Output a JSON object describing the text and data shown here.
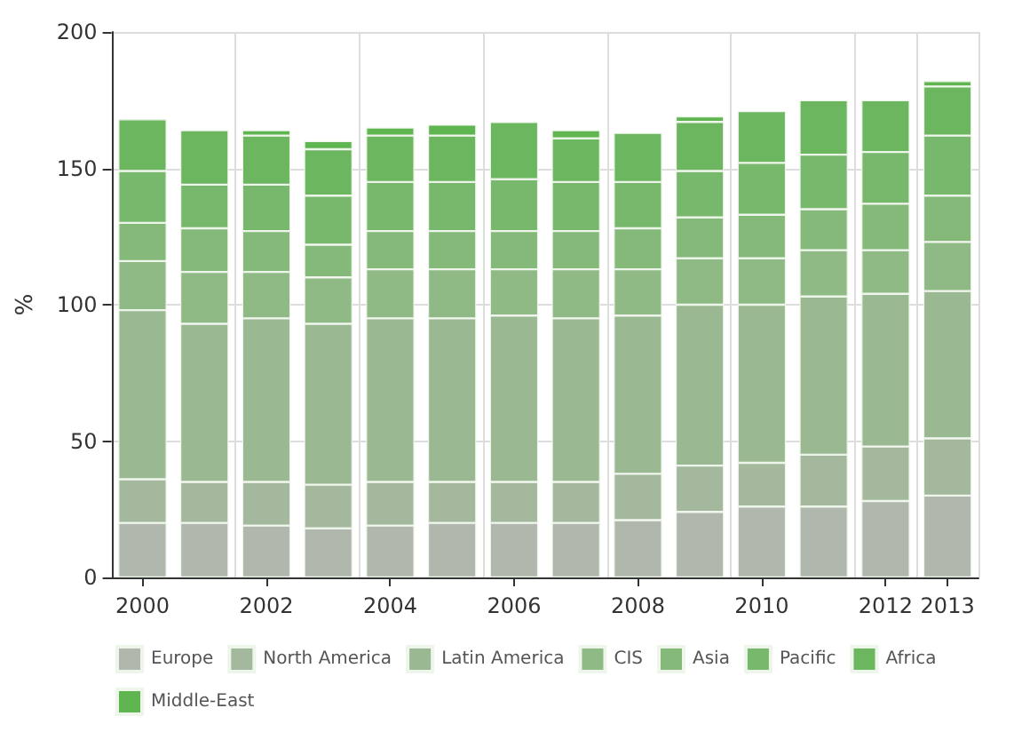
{
  "chart_data": {
    "type": "bar",
    "stacked": true,
    "ylabel": "%",
    "categories": [
      "2000",
      null,
      "2002",
      null,
      "2004",
      null,
      "2006",
      null,
      "2008",
      null,
      "2010",
      null,
      "2012",
      "2013"
    ],
    "ylim": [
      0,
      200
    ],
    "yticks": [
      0,
      50,
      100,
      150,
      200
    ],
    "grid": true,
    "legend": "bottom",
    "series": [
      {
        "name": "Europe",
        "color": "#b0b8ae",
        "values": [
          20,
          20,
          19,
          18,
          19,
          20,
          20,
          20,
          21,
          24,
          26,
          26,
          28,
          30
        ]
      },
      {
        "name": "North America",
        "color": "#a3b89c",
        "values": [
          16,
          15,
          16,
          16,
          16,
          15,
          15,
          15,
          17,
          17,
          16,
          19,
          20,
          21
        ]
      },
      {
        "name": "Latin America",
        "color": "#9ab993",
        "values": [
          62,
          58,
          60,
          59,
          60,
          60,
          61,
          60,
          58,
          59,
          58,
          58,
          56,
          54
        ]
      },
      {
        "name": "CIS",
        "color": "#8fba86",
        "values": [
          18,
          19,
          17,
          17,
          18,
          18,
          17,
          18,
          17,
          17,
          17,
          17,
          16,
          18
        ]
      },
      {
        "name": "Asia",
        "color": "#84b97a",
        "values": [
          14,
          16,
          15,
          12,
          14,
          14,
          14,
          14,
          15,
          15,
          16,
          15,
          17,
          17
        ]
      },
      {
        "name": "Pacific",
        "color": "#77b86c",
        "values": [
          19,
          16,
          17,
          18,
          18,
          18,
          19,
          18,
          17,
          17,
          19,
          20,
          19,
          22
        ]
      },
      {
        "name": "Africa",
        "color": "#6cb65f",
        "values": [
          19,
          20,
          18,
          17,
          17,
          17,
          21,
          16,
          18,
          18,
          19,
          20,
          19,
          18
        ]
      },
      {
        "name": "Middle-East",
        "color": "#5fb54f",
        "values": [
          null,
          null,
          2,
          3,
          3,
          4,
          null,
          3,
          null,
          2,
          null,
          null,
          null,
          2
        ]
      }
    ]
  }
}
